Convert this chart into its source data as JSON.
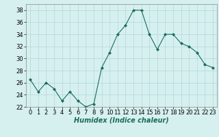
{
  "x": [
    0,
    1,
    2,
    3,
    4,
    5,
    6,
    7,
    8,
    9,
    10,
    11,
    12,
    13,
    14,
    15,
    16,
    17,
    18,
    19,
    20,
    21,
    22,
    23
  ],
  "y": [
    26.5,
    24.5,
    26,
    25,
    23,
    24.5,
    23,
    22,
    22.5,
    28.5,
    31,
    34,
    35.5,
    38,
    38,
    34,
    31.5,
    34,
    34,
    32.5,
    32,
    31,
    29,
    28.5
  ],
  "line_color": "#1a6b5a",
  "marker": "D",
  "marker_size": 2,
  "bg_color": "#d6f0ef",
  "grid_color": "#b0d8d8",
  "xlabel": "Humidex (Indice chaleur)",
  "xlabel_fontsize": 7,
  "tick_fontsize": 6,
  "ylim": [
    22,
    39
  ],
  "xlim": [
    -0.5,
    23.5
  ],
  "yticks": [
    22,
    24,
    26,
    28,
    30,
    32,
    34,
    36,
    38
  ],
  "xticks": [
    0,
    1,
    2,
    3,
    4,
    5,
    6,
    7,
    8,
    9,
    10,
    11,
    12,
    13,
    14,
    15,
    16,
    17,
    18,
    19,
    20,
    21,
    22,
    23
  ]
}
